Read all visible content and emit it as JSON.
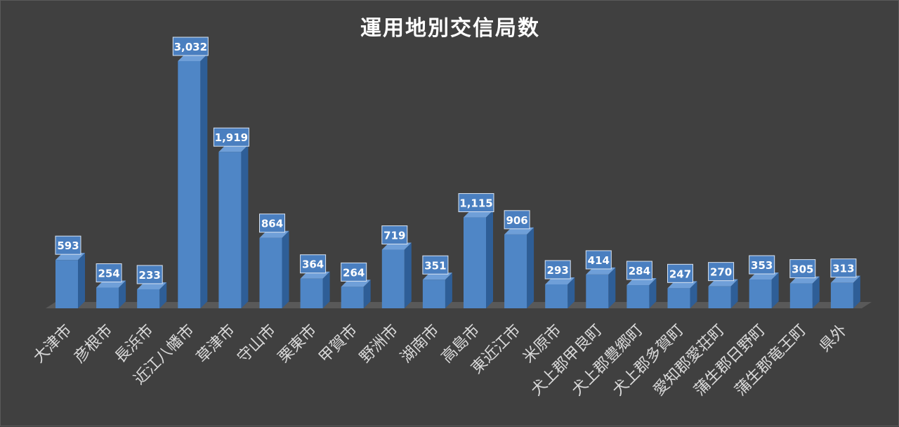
{
  "chart_data": {
    "type": "bar",
    "title": "運用地別交信局数",
    "categories": [
      "大津市",
      "彦根市",
      "長浜市",
      "近江八幡市",
      "草津市",
      "守山市",
      "栗東市",
      "甲賀市",
      "野洲市",
      "湖南市",
      "高島市",
      "東近江市",
      "米原市",
      "犬上郡甲良町",
      "犬上郡豊郷町",
      "犬上郡多賀町",
      "愛知郡愛荘町",
      "蒲生郡日野町",
      "蒲生郡竜王町",
      "県外"
    ],
    "values": [
      593,
      254,
      233,
      3032,
      1919,
      864,
      364,
      264,
      719,
      351,
      1115,
      906,
      293,
      414,
      284,
      247,
      270,
      353,
      305,
      313
    ],
    "value_labels": [
      "593",
      "254",
      "233",
      "3,032",
      "1,919",
      "864",
      "364",
      "264",
      "719",
      "351",
      "1,115",
      "906",
      "293",
      "414",
      "284",
      "247",
      "270",
      "353",
      "305",
      "313"
    ],
    "ylim": [
      0,
      3032
    ],
    "grid": false,
    "legend": "none",
    "colors": {
      "background": "#404040",
      "bar_front": "#4f86c6",
      "bar_side": "#2e5e97",
      "bar_top": "#6f9fd8",
      "floor": "#595959",
      "label_box": "#4a7fc0",
      "label_border": "#d9e4f2",
      "label_text": "#ffffff",
      "axis_text": "#d9d9d9",
      "title_text": "#ffffff"
    }
  }
}
